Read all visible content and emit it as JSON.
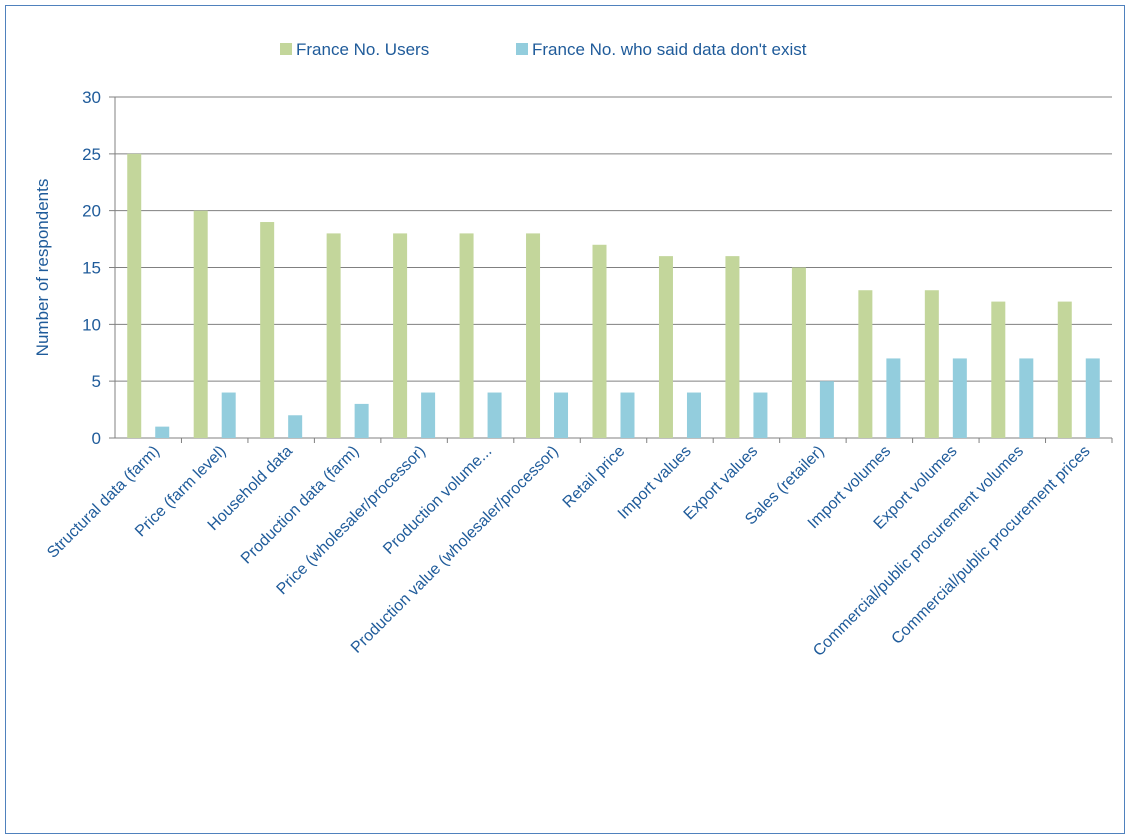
{
  "chart_data": {
    "type": "bar",
    "ylabel": "Number of respondents",
    "ylim": [
      0,
      30
    ],
    "yticks": [
      0,
      5,
      10,
      15,
      20,
      25,
      30
    ],
    "grid": true,
    "legend_position": "top",
    "categories": [
      "Structural data (farm)",
      "Price (farm level)",
      "Household data",
      "Production data (farm)",
      "Price (wholesaler/processor)",
      "Production volume...",
      "Production value (wholesaler/processor)",
      "Retail price",
      "Import values",
      "Export values",
      "Sales (retailer)",
      "Import volumes",
      "Export volumes",
      "Commercial/public procurement volumes",
      "Commercial/public procurement prices"
    ],
    "series": [
      {
        "name": "France No. Users",
        "color": "#c3d69b",
        "values": [
          25,
          20,
          19,
          18,
          18,
          18,
          18,
          17,
          16,
          16,
          15,
          13,
          13,
          12,
          12
        ]
      },
      {
        "name": "France No. who said data don't exist",
        "color": "#93cddd",
        "values": [
          1,
          4,
          2,
          3,
          4,
          4,
          4,
          4,
          4,
          4,
          5,
          7,
          7,
          7,
          7
        ]
      }
    ],
    "colors": {
      "axis_text": "#1f5b9a",
      "grid": "#808080",
      "border": "#4f81bd"
    }
  }
}
